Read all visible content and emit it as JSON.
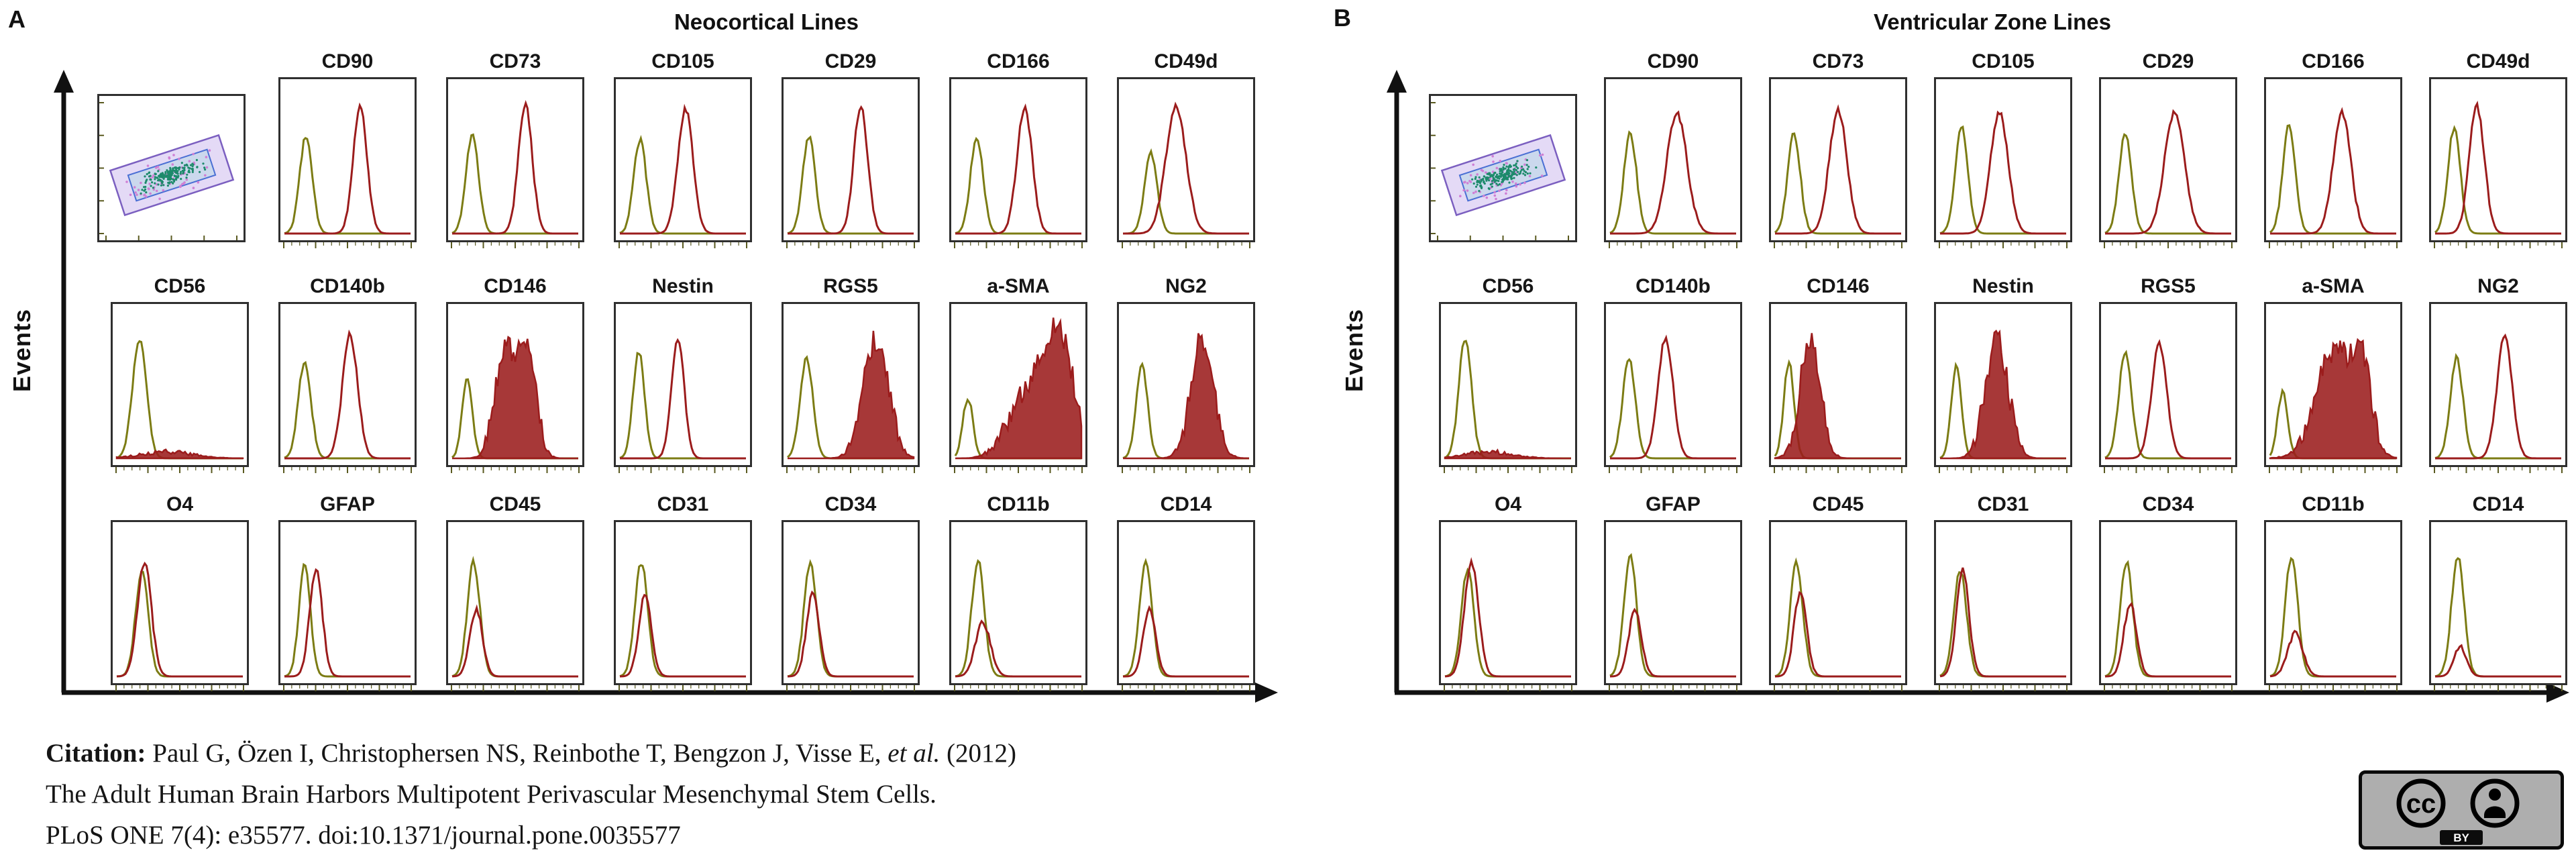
{
  "colors": {
    "axis": "#111111",
    "control_curve": "#7c7c14",
    "marker_curve": "#9b1c1c",
    "tick": "#5a5a20",
    "gate_fill": "#cdbcee",
    "gate_stroke": "#7b5fc0",
    "inner_gate_stroke": "#4a6fd4",
    "inner_gate_fill": "#9fd4dc",
    "cluster_dots": "#1d8a6b",
    "outlier_dots": "#cf7fd4"
  },
  "figure": {
    "panels": [
      {
        "label": "A",
        "title": "Neocortical Lines",
        "y_axis_label": "Events",
        "rows": [
          {
            "cells": [
              {
                "type": "scatter"
              },
              {
                "type": "hist",
                "label": "CD90",
                "green": {
                  "c": 0.17,
                  "w": 0.05,
                  "h": 0.72
                },
                "red": {
                  "c": 0.6,
                  "w": 0.055,
                  "h": 0.95
                }
              },
              {
                "type": "hist",
                "label": "CD73",
                "green": {
                  "c": 0.16,
                  "w": 0.05,
                  "h": 0.74
                },
                "red": {
                  "c": 0.58,
                  "w": 0.055,
                  "h": 0.96
                }
              },
              {
                "type": "hist",
                "label": "CD105",
                "green": {
                  "c": 0.16,
                  "w": 0.05,
                  "h": 0.7
                },
                "red": {
                  "c": 0.52,
                  "w": 0.06,
                  "h": 0.93
                }
              },
              {
                "type": "hist",
                "label": "CD29",
                "green": {
                  "c": 0.17,
                  "w": 0.05,
                  "h": 0.72
                },
                "red": {
                  "c": 0.58,
                  "w": 0.055,
                  "h": 0.95
                }
              },
              {
                "type": "hist",
                "label": "CD166",
                "green": {
                  "c": 0.17,
                  "w": 0.05,
                  "h": 0.72
                },
                "red": {
                  "c": 0.55,
                  "w": 0.06,
                  "h": 0.94
                }
              },
              {
                "type": "hist",
                "label": "CD49d",
                "green": {
                  "c": 0.22,
                  "w": 0.05,
                  "h": 0.6
                },
                "red": {
                  "c": 0.42,
                  "w": 0.08,
                  "h": 0.95
                }
              }
            ]
          },
          {
            "cells": [
              {
                "type": "hist",
                "label": "CD56",
                "green": {
                  "c": 0.18,
                  "w": 0.055,
                  "h": 0.88
                },
                "red": {
                  "c": 0.4,
                  "w": 0.2,
                  "h": 0.05,
                  "style": "filled"
                }
              },
              {
                "type": "hist",
                "label": "CD140b",
                "green": {
                  "c": 0.16,
                  "w": 0.05,
                  "h": 0.72
                },
                "red": {
                  "c": 0.52,
                  "w": 0.06,
                  "h": 0.92
                }
              },
              {
                "type": "hist",
                "label": "CD146",
                "green": {
                  "c": 0.12,
                  "w": 0.04,
                  "h": 0.6
                },
                "red": {
                  "c": 0.42,
                  "w": 0.08,
                  "h": 0.82,
                  "style": "filled"
                },
                "red2": {
                  "c": 0.6,
                  "w": 0.07,
                  "h": 0.78
                }
              },
              {
                "type": "hist",
                "label": "Nestin",
                "green": {
                  "c": 0.15,
                  "w": 0.045,
                  "h": 0.8
                },
                "red": {
                  "c": 0.46,
                  "w": 0.05,
                  "h": 0.9
                }
              },
              {
                "type": "hist",
                "label": "RGS5",
                "green": {
                  "c": 0.15,
                  "w": 0.05,
                  "h": 0.75
                },
                "red": {
                  "c": 0.7,
                  "w": 0.1,
                  "h": 0.88,
                  "style": "filled"
                }
              },
              {
                "type": "hist",
                "label": "a-SMA",
                "green": {
                  "c": 0.1,
                  "w": 0.04,
                  "h": 0.45
                },
                "red": {
                  "c": 0.82,
                  "w": 0.12,
                  "h": 0.9,
                  "style": "filled"
                },
                "red2": {
                  "c": 0.55,
                  "w": 0.14,
                  "h": 0.45
                }
              },
              {
                "type": "hist",
                "label": "NG2",
                "green": {
                  "c": 0.15,
                  "w": 0.045,
                  "h": 0.7
                },
                "red": {
                  "c": 0.63,
                  "w": 0.09,
                  "h": 0.9,
                  "style": "filled"
                }
              }
            ]
          },
          {
            "cells": [
              {
                "type": "hist",
                "label": "O4",
                "green": {
                  "c": 0.2,
                  "w": 0.05,
                  "h": 0.78
                },
                "red": {
                  "c": 0.22,
                  "w": 0.055,
                  "h": 0.85
                }
              },
              {
                "type": "hist",
                "label": "GFAP",
                "green": {
                  "c": 0.16,
                  "w": 0.045,
                  "h": 0.85
                },
                "red": {
                  "c": 0.25,
                  "w": 0.05,
                  "h": 0.8
                }
              },
              {
                "type": "hist",
                "label": "CD45",
                "green": {
                  "c": 0.17,
                  "w": 0.05,
                  "h": 0.85
                },
                "red": {
                  "c": 0.19,
                  "w": 0.05,
                  "h": 0.5
                }
              },
              {
                "type": "hist",
                "label": "CD31",
                "green": {
                  "c": 0.17,
                  "w": 0.05,
                  "h": 0.85
                },
                "red": {
                  "c": 0.2,
                  "w": 0.05,
                  "h": 0.6
                }
              },
              {
                "type": "hist",
                "label": "CD34",
                "green": {
                  "c": 0.18,
                  "w": 0.05,
                  "h": 0.85
                },
                "red": {
                  "c": 0.2,
                  "w": 0.05,
                  "h": 0.62
                }
              },
              {
                "type": "hist",
                "label": "CD11b",
                "green": {
                  "c": 0.18,
                  "w": 0.05,
                  "h": 0.86
                },
                "red": {
                  "c": 0.22,
                  "w": 0.06,
                  "h": 0.4
                }
              },
              {
                "type": "hist",
                "label": "CD14",
                "green": {
                  "c": 0.18,
                  "w": 0.05,
                  "h": 0.86
                },
                "red": {
                  "c": 0.21,
                  "w": 0.05,
                  "h": 0.5
                }
              }
            ]
          }
        ]
      },
      {
        "label": "B",
        "title": "Ventricular Zone Lines",
        "y_axis_label": "Events",
        "rows": [
          {
            "cells": [
              {
                "type": "scatter"
              },
              {
                "type": "hist",
                "label": "CD90",
                "green": {
                  "c": 0.16,
                  "w": 0.05,
                  "h": 0.75
                },
                "red": {
                  "c": 0.53,
                  "w": 0.08,
                  "h": 0.9
                }
              },
              {
                "type": "hist",
                "label": "CD73",
                "green": {
                  "c": 0.15,
                  "w": 0.05,
                  "h": 0.75
                },
                "red": {
                  "c": 0.5,
                  "w": 0.07,
                  "h": 0.92
                }
              },
              {
                "type": "hist",
                "label": "CD105",
                "green": {
                  "c": 0.17,
                  "w": 0.05,
                  "h": 0.8
                },
                "red": {
                  "c": 0.47,
                  "w": 0.07,
                  "h": 0.9
                }
              },
              {
                "type": "hist",
                "label": "CD29",
                "green": {
                  "c": 0.16,
                  "w": 0.05,
                  "h": 0.75
                },
                "red": {
                  "c": 0.55,
                  "w": 0.08,
                  "h": 0.9
                }
              },
              {
                "type": "hist",
                "label": "CD166",
                "green": {
                  "c": 0.15,
                  "w": 0.05,
                  "h": 0.8
                },
                "red": {
                  "c": 0.57,
                  "w": 0.07,
                  "h": 0.9
                }
              },
              {
                "type": "hist",
                "label": "CD49d",
                "green": {
                  "c": 0.15,
                  "w": 0.05,
                  "h": 0.78
                },
                "red": {
                  "c": 0.33,
                  "w": 0.06,
                  "h": 0.95
                }
              }
            ]
          },
          {
            "cells": [
              {
                "type": "hist",
                "label": "CD56",
                "green": {
                  "c": 0.16,
                  "w": 0.05,
                  "h": 0.9
                },
                "red": {
                  "c": 0.35,
                  "w": 0.18,
                  "h": 0.05,
                  "style": "filled"
                }
              },
              {
                "type": "hist",
                "label": "CD140b",
                "green": {
                  "c": 0.15,
                  "w": 0.05,
                  "h": 0.75
                },
                "red": {
                  "c": 0.44,
                  "w": 0.06,
                  "h": 0.9
                }
              },
              {
                "type": "hist",
                "label": "CD146",
                "green": {
                  "c": 0.11,
                  "w": 0.04,
                  "h": 0.72
                },
                "red": {
                  "c": 0.28,
                  "w": 0.08,
                  "h": 0.9,
                  "style": "filled"
                }
              },
              {
                "type": "hist",
                "label": "Nestin",
                "green": {
                  "c": 0.13,
                  "w": 0.04,
                  "h": 0.7
                },
                "red": {
                  "c": 0.45,
                  "w": 0.09,
                  "h": 0.88,
                  "style": "filled"
                }
              },
              {
                "type": "hist",
                "label": "RGS5",
                "green": {
                  "c": 0.16,
                  "w": 0.05,
                  "h": 0.8
                },
                "red": {
                  "c": 0.43,
                  "w": 0.06,
                  "h": 0.85
                }
              },
              {
                "type": "hist",
                "label": "a-SMA",
                "green": {
                  "c": 0.1,
                  "w": 0.04,
                  "h": 0.5
                },
                "red": {
                  "c": 0.52,
                  "w": 0.15,
                  "h": 0.82,
                  "style": "filled"
                },
                "red2": {
                  "c": 0.74,
                  "w": 0.07,
                  "h": 0.5
                }
              },
              {
                "type": "hist",
                "label": "NG2",
                "green": {
                  "c": 0.17,
                  "w": 0.05,
                  "h": 0.75
                },
                "red": {
                  "c": 0.55,
                  "w": 0.06,
                  "h": 0.9
                }
              }
            ]
          },
          {
            "cells": [
              {
                "type": "hist",
                "label": "O4",
                "green": {
                  "c": 0.18,
                  "w": 0.05,
                  "h": 0.8
                },
                "red": {
                  "c": 0.21,
                  "w": 0.055,
                  "h": 0.85
                }
              },
              {
                "type": "hist",
                "label": "GFAP",
                "green": {
                  "c": 0.16,
                  "w": 0.05,
                  "h": 0.9
                },
                "red": {
                  "c": 0.2,
                  "w": 0.05,
                  "h": 0.5
                }
              },
              {
                "type": "hist",
                "label": "CD45",
                "green": {
                  "c": 0.17,
                  "w": 0.05,
                  "h": 0.85
                },
                "red": {
                  "c": 0.2,
                  "w": 0.05,
                  "h": 0.62
                }
              },
              {
                "type": "hist",
                "label": "CD31",
                "green": {
                  "c": 0.16,
                  "w": 0.05,
                  "h": 0.8
                },
                "red": {
                  "c": 0.18,
                  "w": 0.05,
                  "h": 0.8
                }
              },
              {
                "type": "hist",
                "label": "CD34",
                "green": {
                  "c": 0.17,
                  "w": 0.05,
                  "h": 0.85
                },
                "red": {
                  "c": 0.2,
                  "w": 0.05,
                  "h": 0.55
                }
              },
              {
                "type": "hist",
                "label": "CD11b",
                "green": {
                  "c": 0.17,
                  "w": 0.05,
                  "h": 0.9
                },
                "red": {
                  "c": 0.2,
                  "w": 0.06,
                  "h": 0.32
                }
              },
              {
                "type": "hist",
                "label": "CD14",
                "green": {
                  "c": 0.18,
                  "w": 0.05,
                  "h": 0.9
                },
                "red": {
                  "c": 0.2,
                  "w": 0.05,
                  "h": 0.22
                }
              }
            ]
          }
        ]
      }
    ]
  },
  "citation": {
    "label": "Citation:",
    "authors": " Paul G, Özen I, Christophersen NS, Reinbothe T, Bengzon J, Visse E, ",
    "etal": "et al.",
    "year": " (2012)",
    "line2": "The Adult Human Brain Harbors Multipotent Perivascular Mesenchymal Stem Cells.",
    "line3": "PLoS ONE 7(4): e35577. doi:10.1371/journal.pone.0035577"
  },
  "license": {
    "cc_label": "cc",
    "by_label": "BY"
  }
}
